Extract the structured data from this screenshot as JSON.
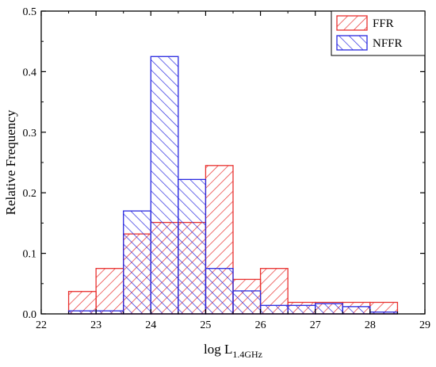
{
  "chart_data": {
    "type": "bar",
    "xlabel_main": "log L",
    "xlabel_sub": "1.4GHz",
    "ylabel": "Relative Frequency",
    "xlim": [
      22,
      29
    ],
    "ylim": [
      0,
      0.5
    ],
    "bin_width": 0.5,
    "x_ticks": [
      "22",
      "23",
      "24",
      "25",
      "26",
      "27",
      "28",
      "29"
    ],
    "y_ticks": [
      "0.0",
      "0.1",
      "0.2",
      "0.3",
      "0.4",
      "0.5"
    ],
    "legend_position": "top-right",
    "series": [
      {
        "name": "FFR",
        "color": "#e8312f",
        "hatch": "forward-diagonal",
        "bin_left_edges": [
          22.5,
          23.0,
          23.5,
          24.0,
          24.5,
          25.0,
          25.5,
          26.0,
          26.5,
          27.0,
          27.5,
          28.0
        ],
        "values": [
          0.037,
          0.075,
          0.132,
          0.151,
          0.151,
          0.245,
          0.057,
          0.075,
          0.019,
          0.019,
          0.019,
          0.019
        ]
      },
      {
        "name": "NFFR",
        "color": "#2a2ae0",
        "hatch": "back-diagonal",
        "bin_left_edges": [
          22.5,
          23.0,
          23.5,
          24.0,
          24.5,
          25.0,
          25.5,
          26.0,
          26.5,
          27.0,
          27.5,
          28.0
        ],
        "values": [
          0.005,
          0.005,
          0.17,
          0.425,
          0.222,
          0.075,
          0.038,
          0.014,
          0.014,
          0.017,
          0.012,
          0.003
        ]
      }
    ]
  }
}
